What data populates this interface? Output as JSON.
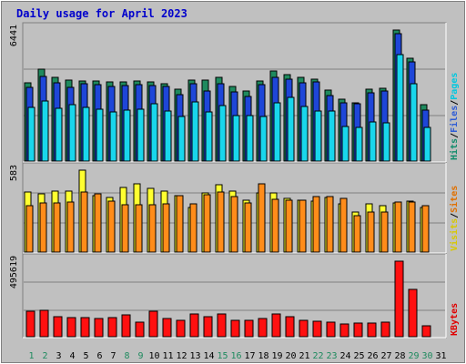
{
  "chart_data": {
    "type": "bar",
    "title": "Daily usage for April 2023",
    "x": [
      "1",
      "2",
      "3",
      "4",
      "5",
      "6",
      "7",
      "8",
      "9",
      "10",
      "11",
      "12",
      "13",
      "14",
      "15",
      "16",
      "17",
      "18",
      "19",
      "20",
      "21",
      "22",
      "23",
      "24",
      "25",
      "26",
      "27",
      "28",
      "29",
      "30",
      "31"
    ],
    "weekend_days": [
      "1",
      "2",
      "8",
      "9",
      "15",
      "16",
      "22",
      "23",
      "29",
      "30"
    ],
    "panels": [
      {
        "id": "traffic",
        "max_label": "6441",
        "ymax": 6441,
        "legend": [
          "Pages",
          "Files",
          "Hits"
        ],
        "legend_colors": [
          "#00c8e0",
          "#2e5cd6",
          "#0f8c6b"
        ],
        "series": [
          {
            "name": "Hits",
            "color": "#1e8a5e",
            "values": [
              3840,
              4530,
              4100,
              3990,
              3930,
              3950,
              3900,
              3880,
              3950,
              3890,
              3810,
              3530,
              3980,
              4000,
              4100,
              3690,
              3440,
              3930,
              4420,
              4250,
              4100,
              4010,
              3510,
              3060,
              2870,
              3530,
              3600,
              6441,
              5060,
              2760,
              0
            ]
          },
          {
            "name": "Files",
            "color": "#1e46d8",
            "values": [
              3630,
              4170,
              3850,
              3640,
              3810,
              3760,
              3670,
              3700,
              3760,
              3700,
              3680,
              3260,
              3820,
              3440,
              3790,
              3400,
              3190,
              3750,
              4130,
              4030,
              3850,
              3880,
              3240,
              2850,
              2820,
              3340,
              3430,
              6260,
              4860,
              2500,
              0
            ]
          },
          {
            "name": "Pages",
            "color": "#19d6ec",
            "values": [
              2660,
              2940,
              2590,
              2760,
              2640,
              2560,
              2410,
              2490,
              2560,
              2800,
              2440,
              2190,
              2890,
              2420,
              2750,
              2250,
              2240,
              2210,
              2880,
              3150,
              2690,
              2470,
              2440,
              1690,
              1650,
              1930,
              1900,
              5230,
              3780,
              1660,
              0
            ]
          }
        ]
      },
      {
        "id": "visitors",
        "max_label": "583",
        "ymax": 583,
        "legend": [
          "Sites",
          "Visits"
        ],
        "legend_colors": [
          "#e07000",
          "#d8c800"
        ],
        "series": [
          {
            "name": "Visits",
            "color": "#ffff30",
            "values": [
              425,
              413,
              432,
              435,
              583,
              400,
              387,
              460,
              485,
              455,
              432,
              402,
              320,
              418,
              480,
              432,
              367,
              423,
              422,
              382,
              372,
              365,
              388,
              342,
              283,
              342,
              332,
              347,
              360,
              320,
              0
            ]
          },
          {
            "name": "Sites",
            "color": "#ff8c1a",
            "values": [
              333,
              350,
              347,
              358,
              428,
              412,
              362,
              335,
              335,
              337,
              345,
              402,
              345,
              405,
              425,
              397,
              352,
              483,
              375,
              370,
              367,
              395,
              397,
              382,
              262,
              287,
              287,
              357,
              355,
              332,
              0
            ]
          }
        ]
      },
      {
        "id": "kbytes",
        "max_label": "495619",
        "ymax": 495619,
        "legend": [
          "KBytes"
        ],
        "legend_colors": [
          "#e00000"
        ],
        "series": [
          {
            "name": "KBytes",
            "color": "#ff1010",
            "values": [
              165400,
              170600,
              133400,
              125800,
              123100,
              116500,
              127600,
              143000,
              95300,
              167000,
              116900,
              108400,
              148600,
              131700,
              151300,
              106000,
              110400,
              118400,
              150500,
              133600,
              108800,
              100400,
              93100,
              85500,
              87900,
              91300,
              96000,
              495619,
              308500,
              71200,
              0
            ]
          }
        ]
      }
    ]
  }
}
